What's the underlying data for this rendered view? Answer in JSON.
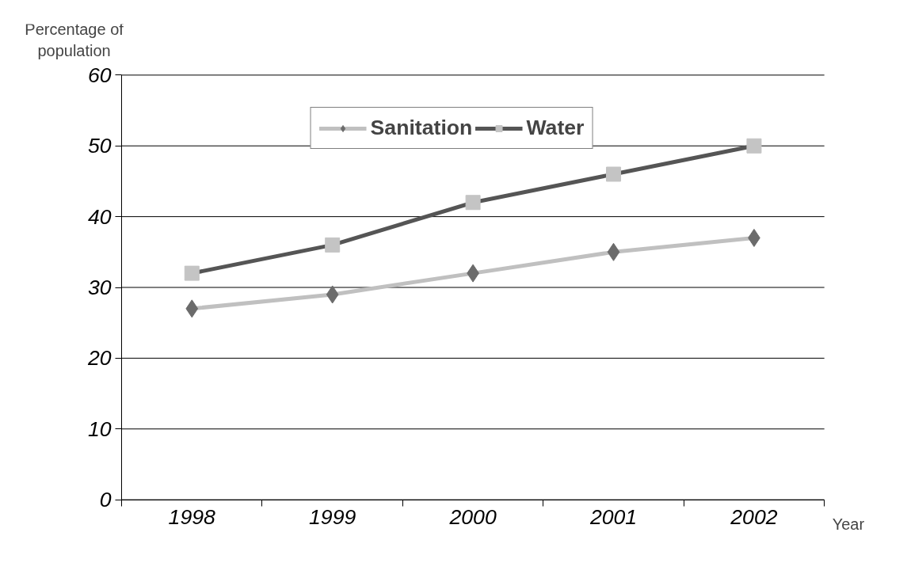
{
  "chart_data": {
    "type": "line",
    "xlabel": "Year",
    "ylabel": "Percentage of population",
    "categories": [
      "1998",
      "1999",
      "2000",
      "2001",
      "2002"
    ],
    "series": [
      {
        "name": "Sanitation",
        "color": "#c0c0c0",
        "marker": "diamond",
        "colors": [
          "#6b6b6b",
          "#6b6b6b",
          "#6b6b6b",
          "#6b6b6b",
          "#6b6b6b"
        ],
        "values": [
          27,
          29,
          32,
          35,
          37
        ]
      },
      {
        "name": "Water",
        "color": "#555555",
        "marker": "square",
        "colors": [
          "#c4c4c4",
          "#c4c4c4",
          "#c4c4c4",
          "#c4c4c4",
          "#c4c4c4"
        ],
        "values": [
          32,
          36,
          42,
          46,
          50
        ]
      }
    ],
    "ylim": [
      0,
      60
    ],
    "yticks": [
      0,
      10,
      20,
      30,
      40,
      50,
      60
    ],
    "grid": "y",
    "legend": "top",
    "line_style": "solid"
  }
}
